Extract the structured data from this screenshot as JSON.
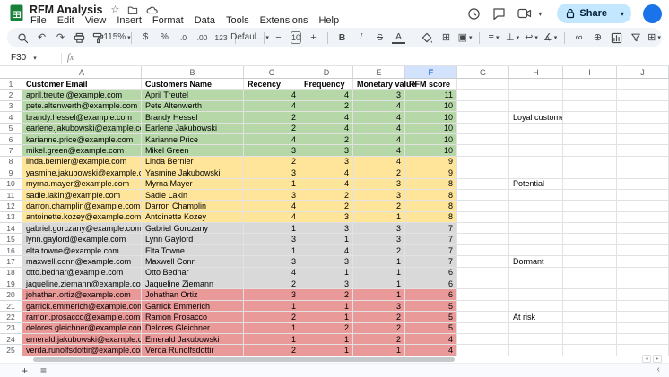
{
  "app": {
    "title": "RFM Analysis",
    "menu": [
      "File",
      "Edit",
      "View",
      "Insert",
      "Format",
      "Data",
      "Tools",
      "Extensions",
      "Help"
    ],
    "share_label": "Share",
    "name_box": "F30",
    "formula_prefix": "fx",
    "formula_value": ""
  },
  "toolbar": {
    "zoom": "115%",
    "currency": "$",
    "percent": "%",
    "decrease_decimal": ".0",
    "increase_decimal": ".00",
    "more_formats": "123",
    "font_name": "Defaul...",
    "font_size": "10",
    "bold": "B",
    "italic": "I",
    "strikethrough": "S",
    "text_color": "A",
    "functions": "Σ"
  },
  "icons": {
    "undo": "↶",
    "redo": "↷",
    "dropdown": "▾",
    "minus": "−",
    "plus": "+",
    "borders": "⊞",
    "merge": "▣",
    "h_align": "≡",
    "v_align": "⊥",
    "text_wrap": "↩",
    "text_rotate": "∡",
    "insert_link": "∞",
    "insert_comment": "⊕",
    "table_views": "⊞",
    "collapse": "^",
    "star": "☆",
    "add_sheet": "+",
    "all_sheets": "≡",
    "scroll_left": "◂",
    "scroll_right": "▸",
    "side_collapse": "‹"
  },
  "colors": {
    "green": "#b6d7a8",
    "yellow": "#ffe599",
    "gray": "#d9d9d9",
    "red": "#ea9999",
    "selected_col": "#d3e3fd",
    "accent": "#0b57d0",
    "share": "#c2e7ff",
    "logo": "#188038",
    "avatar": "#1a73e8"
  },
  "sheet": {
    "columns": [
      "A",
      "B",
      "C",
      "D",
      "E",
      "F",
      "G",
      "H",
      "I",
      "J"
    ],
    "selected_column": "F",
    "selected_cell": "F30",
    "header_row": [
      "Customer Email",
      "Customers Name",
      "Recency",
      "Frequency",
      "Monetary value",
      "RFM score"
    ],
    "rows": [
      {
        "r": 2,
        "email": "april.treutel@example.com",
        "name": "April Treutel",
        "recency": 4,
        "frequency": 4,
        "monetary": 3,
        "rfm": 11,
        "color": "green"
      },
      {
        "r": 3,
        "email": "pete.altenwerth@example.com",
        "name": "Pete Altenwerth",
        "recency": 4,
        "frequency": 2,
        "monetary": 4,
        "rfm": 10,
        "color": "green"
      },
      {
        "r": 4,
        "email": "brandy.hessel@example.com",
        "name": "Brandy Hessel",
        "recency": 2,
        "frequency": 4,
        "monetary": 4,
        "rfm": 10,
        "color": "green"
      },
      {
        "r": 5,
        "email": "earlene.jakubowski@example.com",
        "name": "Earlene Jakubowski",
        "recency": 2,
        "frequency": 4,
        "monetary": 4,
        "rfm": 10,
        "color": "green"
      },
      {
        "r": 6,
        "email": "karianne.price@example.com",
        "name": "Karianne Price",
        "recency": 4,
        "frequency": 2,
        "monetary": 4,
        "rfm": 10,
        "color": "green"
      },
      {
        "r": 7,
        "email": "mikel.green@example.com",
        "name": "Mikel Green",
        "recency": 3,
        "frequency": 3,
        "monetary": 4,
        "rfm": 10,
        "color": "green"
      },
      {
        "r": 8,
        "email": "linda.bernier@example.com",
        "name": "Linda Bernier",
        "recency": 2,
        "frequency": 3,
        "monetary": 4,
        "rfm": 9,
        "color": "yellow"
      },
      {
        "r": 9,
        "email": "yasmine.jakubowski@example.com",
        "name": "Yasmine Jakubowski",
        "recency": 3,
        "frequency": 4,
        "monetary": 2,
        "rfm": 9,
        "color": "yellow"
      },
      {
        "r": 10,
        "email": "myrna.mayer@example.com",
        "name": "Myrna Mayer",
        "recency": 1,
        "frequency": 4,
        "monetary": 3,
        "rfm": 8,
        "color": "yellow"
      },
      {
        "r": 11,
        "email": "sadie.lakin@example.com",
        "name": "Sadie Lakin",
        "recency": 3,
        "frequency": 2,
        "monetary": 3,
        "rfm": 8,
        "color": "yellow"
      },
      {
        "r": 12,
        "email": "darron.champlin@example.com",
        "name": "Darron Champlin",
        "recency": 4,
        "frequency": 2,
        "monetary": 2,
        "rfm": 8,
        "color": "yellow"
      },
      {
        "r": 13,
        "email": "antoinette.kozey@example.com",
        "name": "Antoinette Kozey",
        "recency": 4,
        "frequency": 3,
        "monetary": 1,
        "rfm": 8,
        "color": "yellow"
      },
      {
        "r": 14,
        "email": "gabriel.gorczany@example.com",
        "name": "Gabriel Gorczany",
        "recency": 1,
        "frequency": 3,
        "monetary": 3,
        "rfm": 7,
        "color": "gray"
      },
      {
        "r": 15,
        "email": "lynn.gaylord@example.com",
        "name": "Lynn Gaylord",
        "recency": 3,
        "frequency": 1,
        "monetary": 3,
        "rfm": 7,
        "color": "gray"
      },
      {
        "r": 16,
        "email": "elta.towne@example.com",
        "name": "Elta Towne",
        "recency": 1,
        "frequency": 4,
        "monetary": 2,
        "rfm": 7,
        "color": "gray"
      },
      {
        "r": 17,
        "email": "maxwell.conn@example.com",
        "name": "Maxwell Conn",
        "recency": 3,
        "frequency": 3,
        "monetary": 1,
        "rfm": 7,
        "color": "gray"
      },
      {
        "r": 18,
        "email": "otto.bednar@example.com",
        "name": "Otto Bednar",
        "recency": 4,
        "frequency": 1,
        "monetary": 1,
        "rfm": 6,
        "color": "gray"
      },
      {
        "r": 19,
        "email": "jaqueline.ziemann@example.com",
        "name": "Jaqueline Ziemann",
        "recency": 2,
        "frequency": 3,
        "monetary": 1,
        "rfm": 6,
        "color": "gray"
      },
      {
        "r": 20,
        "email": "johathan.ortiz@example.com",
        "name": "Johathan Ortiz",
        "recency": 3,
        "frequency": 2,
        "monetary": 1,
        "rfm": 6,
        "color": "red"
      },
      {
        "r": 21,
        "email": "garrick.emmerich@example.com",
        "name": "Garrick Emmerich",
        "recency": 1,
        "frequency": 1,
        "monetary": 3,
        "rfm": 5,
        "color": "red"
      },
      {
        "r": 22,
        "email": "ramon.prosacco@example.com",
        "name": "Ramon Prosacco",
        "recency": 2,
        "frequency": 1,
        "monetary": 2,
        "rfm": 5,
        "color": "red"
      },
      {
        "r": 23,
        "email": "delores.gleichner@example.com",
        "name": "Delores Gleichner",
        "recency": 1,
        "frequency": 2,
        "monetary": 2,
        "rfm": 5,
        "color": "red"
      },
      {
        "r": 24,
        "email": "emerald.jakubowski@example.com",
        "name": "Emerald Jakubowski",
        "recency": 1,
        "frequency": 1,
        "monetary": 2,
        "rfm": 4,
        "color": "red"
      },
      {
        "r": 25,
        "email": "verda.runolfsdottir@example.com",
        "name": "Verda Runolfsdottir",
        "recency": 2,
        "frequency": 1,
        "monetary": 1,
        "rfm": 4,
        "color": "red"
      }
    ],
    "segments": [
      {
        "row": 4,
        "label": "Loyal customers"
      },
      {
        "row": 10,
        "label": "Potential"
      },
      {
        "row": 17,
        "label": "Dormant"
      },
      {
        "row": 22,
        "label": "At risk"
      }
    ]
  }
}
